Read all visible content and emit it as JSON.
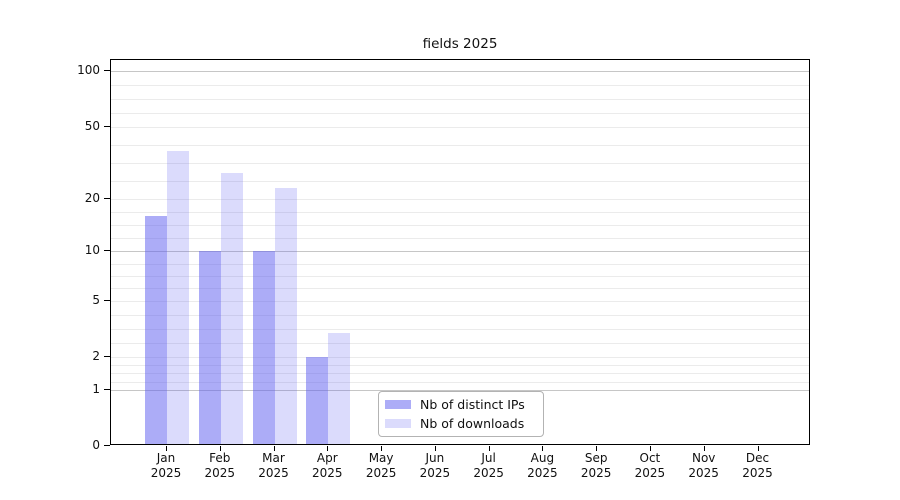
{
  "title": "fields 2025",
  "legend": {
    "items": [
      {
        "label": "Nb of distinct IPs",
        "color": "rgba(90,90,240,0.50)",
        "color_hex": "#adadf7"
      },
      {
        "label": "Nb of downloads",
        "color": "rgba(90,90,240,0.22)",
        "color_hex": "#dcdcfb"
      }
    ]
  },
  "axes": {
    "y_tick_labels": [
      "100",
      "50",
      "20",
      "10",
      "5",
      "2",
      "1",
      "0"
    ],
    "x_tick_year": "2025"
  },
  "chart_data": {
    "type": "bar",
    "title": "fields 2025",
    "categories": [
      "Jan",
      "Feb",
      "Mar",
      "Apr",
      "May",
      "Jun",
      "Jul",
      "Aug",
      "Sep",
      "Oct",
      "Nov",
      "Dec"
    ],
    "x_sub_label": "2025",
    "series": [
      {
        "name": "Nb of distinct IPs",
        "color": "rgba(90,90,240,0.50)",
        "values": [
          16,
          10,
          10,
          2,
          0,
          0,
          0,
          0,
          0,
          0,
          0,
          0
        ]
      },
      {
        "name": "Nb of downloads",
        "color": "rgba(90,90,240,0.22)",
        "values": [
          37,
          28,
          23,
          3,
          0,
          0,
          0,
          0,
          0,
          0,
          0,
          0
        ]
      }
    ],
    "xlabel": "",
    "ylabel": "",
    "y_scale": "log1p",
    "ylim": [
      0,
      115
    ],
    "y_ticks": [
      0,
      1,
      2,
      5,
      10,
      20,
      50,
      100
    ],
    "grid": "major+minor",
    "major_grid_at": [
      1,
      10,
      100
    ],
    "minor_subdivisions_between_ticks": 4,
    "legend_position": "lower-center"
  },
  "colors": {
    "background": "#ffffff",
    "spine": "#000000",
    "grid_major": "#c6c6c6",
    "grid_minor": "#ebebeb",
    "text": "#111111",
    "bar_base": "#5a5af0"
  }
}
